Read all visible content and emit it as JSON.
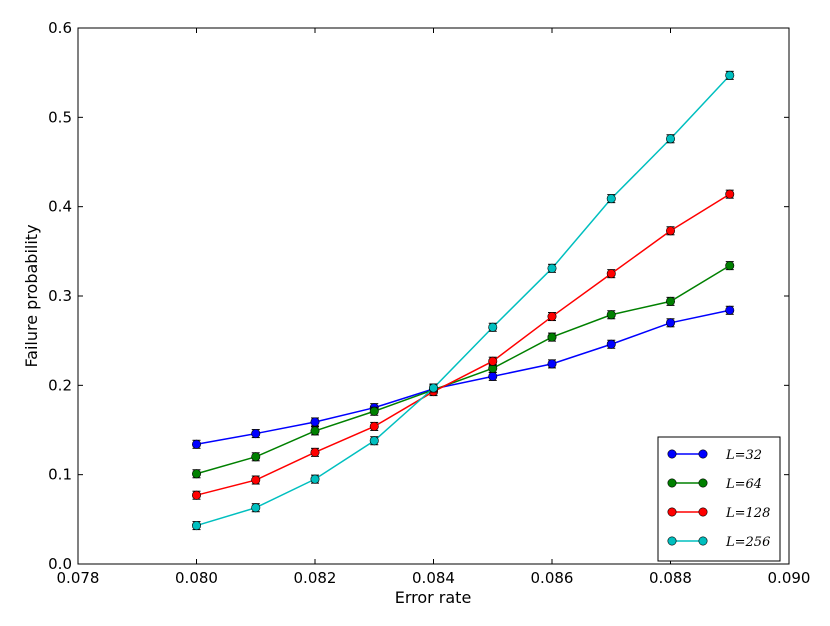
{
  "chart_data": {
    "type": "line",
    "title": "",
    "xlabel": "Error rate",
    "ylabel": "Failure probability",
    "xlim": [
      0.078,
      0.09
    ],
    "ylim": [
      0.0,
      0.6
    ],
    "xticks": [
      0.078,
      0.08,
      0.082,
      0.084,
      0.086,
      0.088,
      0.09
    ],
    "xtick_labels": [
      "0.078",
      "0.080",
      "0.082",
      "0.084",
      "0.086",
      "0.088",
      "0.090"
    ],
    "yticks": [
      0.0,
      0.1,
      0.2,
      0.3,
      0.4,
      0.5,
      0.6
    ],
    "ytick_labels": [
      "0.0",
      "0.1",
      "0.2",
      "0.3",
      "0.4",
      "0.5",
      "0.6"
    ],
    "grid": false,
    "legend_position": "bottom-right",
    "x": [
      0.08,
      0.081,
      0.082,
      0.083,
      0.084,
      0.085,
      0.086,
      0.087,
      0.088,
      0.089
    ],
    "series": [
      {
        "name": "L=32",
        "color": "#0000ff",
        "values": [
          0.134,
          0.146,
          0.159,
          0.175,
          0.196,
          0.21,
          0.224,
          0.246,
          0.27,
          0.284
        ]
      },
      {
        "name": "L=64",
        "color": "#008000",
        "values": [
          0.101,
          0.12,
          0.149,
          0.171,
          0.195,
          0.219,
          0.254,
          0.279,
          0.294,
          0.334
        ]
      },
      {
        "name": "L=128",
        "color": "#ff0000",
        "values": [
          0.077,
          0.094,
          0.125,
          0.154,
          0.193,
          0.227,
          0.277,
          0.325,
          0.373,
          0.414
        ]
      },
      {
        "name": "L=256",
        "color": "#00bfbf",
        "values": [
          0.043,
          0.063,
          0.095,
          0.138,
          0.197,
          0.265,
          0.331,
          0.409,
          0.476,
          0.547
        ]
      }
    ]
  }
}
